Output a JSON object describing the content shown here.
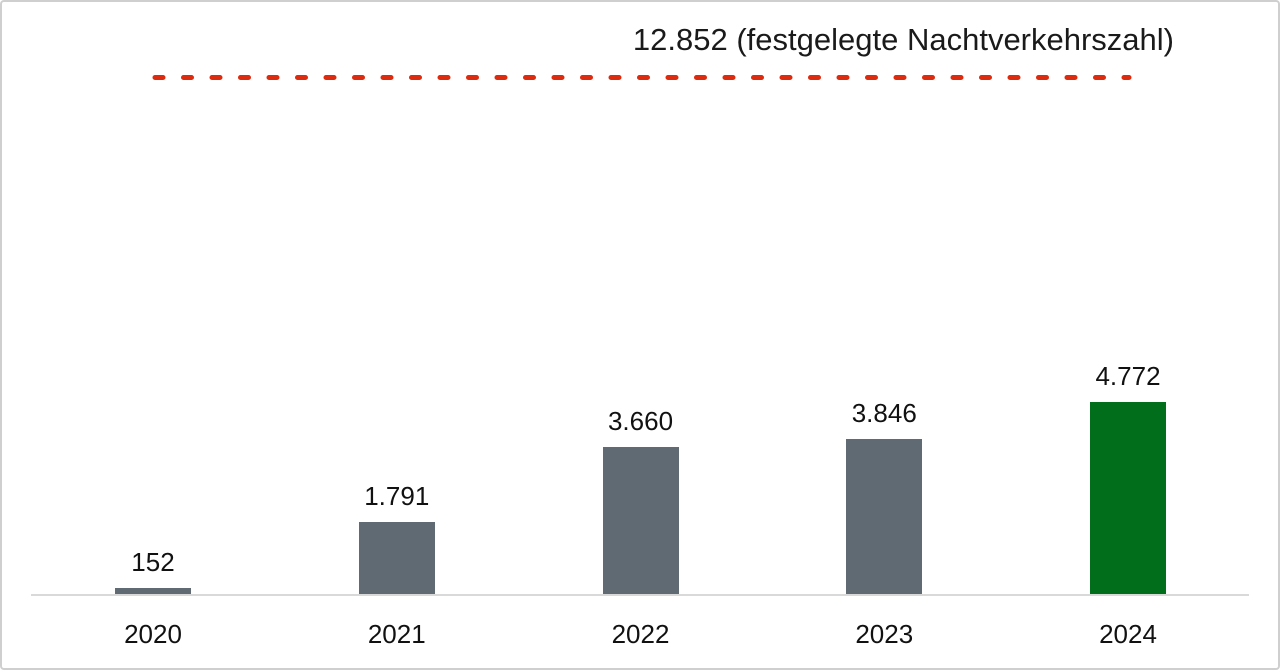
{
  "chart_data": {
    "type": "bar",
    "title": "",
    "xlabel": "",
    "ylabel": "",
    "categories": [
      "2020",
      "2021",
      "2022",
      "2023",
      "2024"
    ],
    "values": [
      152,
      1791,
      3660,
      3846,
      4772
    ],
    "value_labels": [
      "152",
      "1.791",
      "3.660",
      "3.846",
      "4.772"
    ],
    "bar_colors": [
      "#5f6a72",
      "#5f6a72",
      "#5f6a72",
      "#5f6a72",
      "#006e1a"
    ],
    "reference_line": {
      "value": 12852,
      "label": "12.852 (festgelegte Nachtverkehrszahl)",
      "color": "#dd2b10",
      "style": "dashed"
    },
    "ylim": [
      0,
      13500
    ],
    "grid": false,
    "legend": false,
    "axis_line_color": "#d9d9d9",
    "text_color": "#1a1a1a",
    "background_color": "#ffffff",
    "frame_border_color": "#cfcfcf"
  }
}
